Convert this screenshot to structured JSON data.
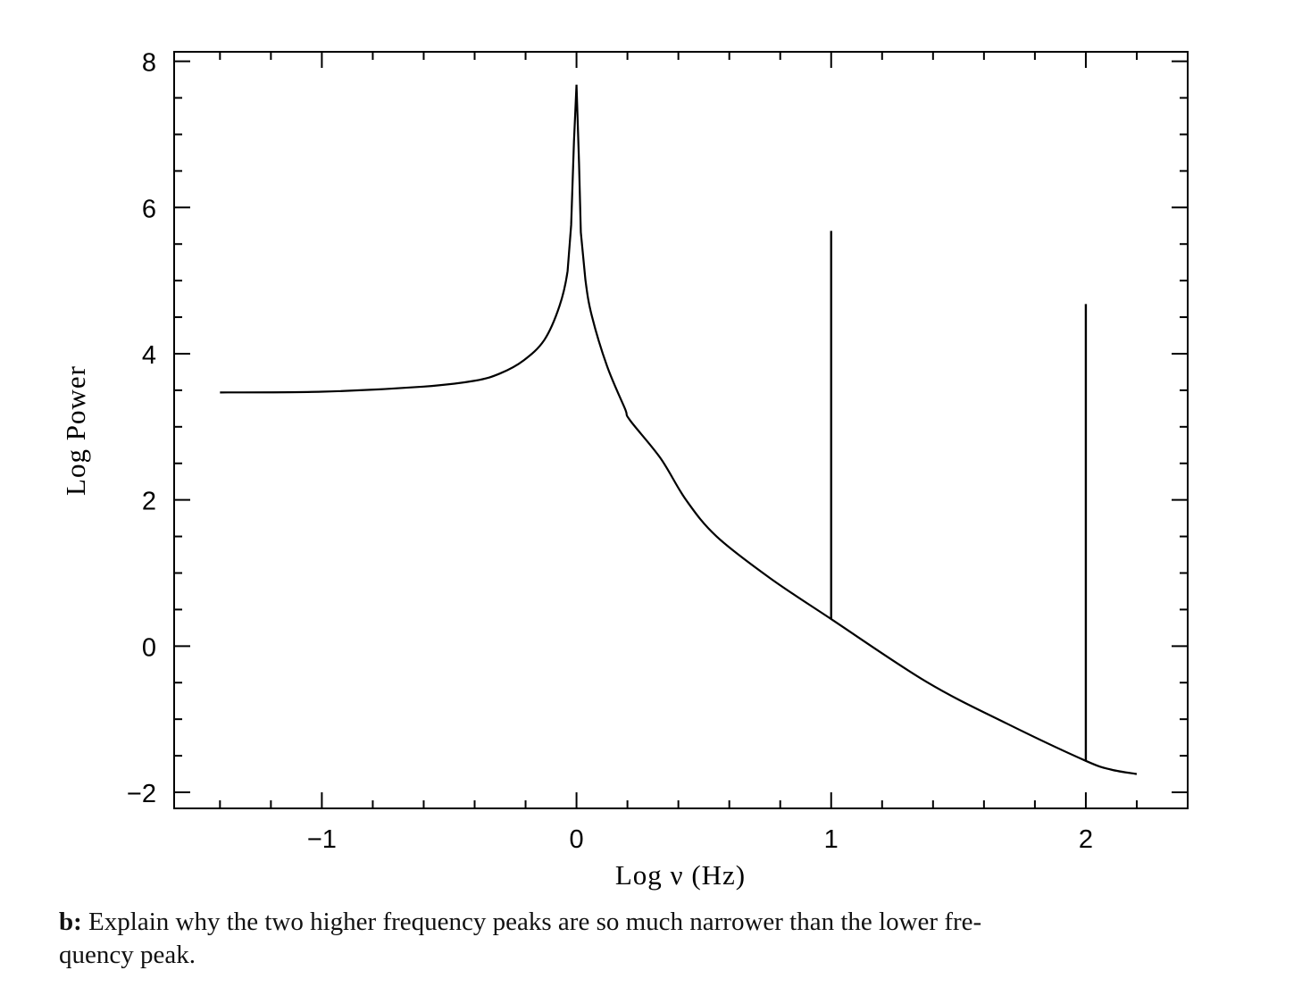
{
  "chart_data": {
    "type": "line",
    "xlabel": "Log ν (Hz)",
    "ylabel": "Log Power",
    "xlim": [
      -1.58,
      2.4
    ],
    "ylim": [
      -2.22,
      8.13
    ],
    "xticks": [
      -1,
      0,
      1,
      2
    ],
    "xtick_labels": [
      "−1",
      "0",
      "1",
      "2"
    ],
    "x_minor_step": 0.2,
    "yticks": [
      -2,
      0,
      2,
      4,
      6,
      8
    ],
    "ytick_labels": [
      "−2",
      "0",
      "2",
      "4",
      "6",
      "8"
    ],
    "y_minor_step": 0.5,
    "grid": false,
    "line_color": "#000000",
    "series": [
      {
        "x": [
          -1.4,
          -1.0,
          -0.6,
          -0.4,
          -0.3,
          -0.207,
          -0.126,
          -0.067,
          -0.035,
          -0.021,
          -0.01,
          0.0,
          0.01,
          0.017,
          0.035,
          0.06,
          0.12,
          0.19,
          0.21,
          0.33,
          0.43,
          0.55,
          0.76,
          1.0,
          1.375,
          1.69,
          2.0,
          2.1,
          2.2
        ],
        "y": [
          3.47,
          3.48,
          3.55,
          3.63,
          3.73,
          3.91,
          4.19,
          4.65,
          5.13,
          5.76,
          6.9,
          7.68,
          6.6,
          5.66,
          5.01,
          4.52,
          3.83,
          3.25,
          3.09,
          2.57,
          2.0,
          1.5,
          0.93,
          0.37,
          -0.49,
          -1.06,
          -1.57,
          -1.69,
          -1.75
        ]
      }
    ],
    "spikes": [
      {
        "x": 1.0,
        "y_base": 0.37,
        "y_top": 5.68
      },
      {
        "x": 2.0,
        "y_base": -1.57,
        "y_top": 4.68
      }
    ]
  },
  "caption": {
    "label": "b:",
    "line1": "Explain why the two higher frequency peaks are so much narrower than the lower fre-",
    "line2": "quency peak."
  }
}
